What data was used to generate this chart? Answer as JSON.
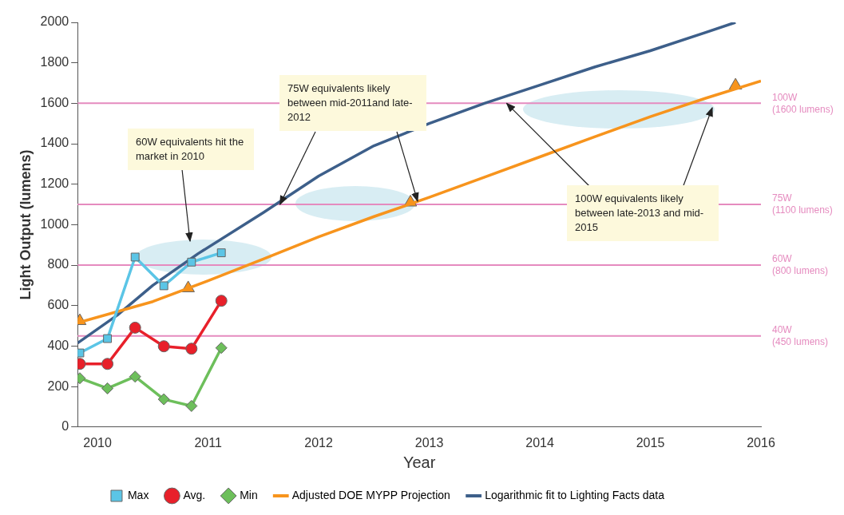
{
  "chart_data": {
    "type": "line",
    "xlabel": "Year",
    "ylabel": "Light Output (lumens)",
    "xlim": [
      2009.82,
      2016
    ],
    "xticks": [
      2010,
      2011,
      2012,
      2013,
      2014,
      2015,
      2016
    ],
    "ylim": [
      0,
      2000
    ],
    "yticks": [
      0,
      200,
      400,
      600,
      800,
      1000,
      1200,
      1400,
      1600,
      1800,
      2000
    ],
    "grid": false,
    "legend": "bottom",
    "line_style": "solid",
    "series": [
      {
        "name": "Max",
        "color": "#5bc5e6",
        "marker": "square",
        "x": [
          2009.84,
          2010.09,
          2010.34,
          2010.6,
          2010.85,
          2011.12
        ],
        "values": [
          366,
          437,
          840,
          698,
          815,
          861
        ]
      },
      {
        "name": "Avg.",
        "color": "#e8202a",
        "marker": "circle",
        "x": [
          2009.84,
          2010.09,
          2010.34,
          2010.6,
          2010.85,
          2011.12
        ],
        "values": [
          312,
          312,
          491,
          399,
          387,
          624
        ]
      },
      {
        "name": "Min",
        "color": "#6dbf5b",
        "marker": "diamond",
        "x": [
          2009.84,
          2010.09,
          2010.34,
          2010.6,
          2010.85,
          2011.12
        ],
        "values": [
          241,
          191,
          249,
          137,
          104,
          391
        ]
      },
      {
        "name": "Adjusted DOE MYPP Projection",
        "color": "#f7941d",
        "marker": "none",
        "x": [
          2009.82,
          2010.5,
          2011,
          2011.5,
          2012,
          2012.5,
          2013,
          2013.5,
          2014,
          2014.5,
          2015,
          2015.5,
          2016
        ],
        "values": [
          515,
          620,
          723,
          830,
          940,
          1040,
          1135,
          1235,
          1335,
          1435,
          1534,
          1625,
          1710
        ]
      },
      {
        "type": "scatter",
        "color": "#f7941d",
        "marker": "triangle",
        "x": [
          2009.84,
          2010.82,
          2012.83,
          2015.77
        ],
        "values": [
          524,
          686,
          1110,
          1688
        ]
      },
      {
        "name": "Logarithmic fit to Lighting Facts data",
        "color": "#3d5f8a",
        "marker": "none",
        "x": [
          2009.82,
          2010.18,
          2010.5,
          2010.91,
          2011.5,
          2012,
          2012.5,
          2013,
          2013.5,
          2014,
          2014.5,
          2015,
          2015.5,
          2015.77
        ],
        "values": [
          415,
          553,
          700,
          857,
          1060,
          1240,
          1390,
          1500,
          1600,
          1690,
          1780,
          1860,
          1950,
          2000
        ]
      }
    ],
    "ref_lines": [
      {
        "axis": "y",
        "value": 1600,
        "label": "100W (1600 lumens)",
        "color": "#e58bbf"
      },
      {
        "axis": "y",
        "value": 1100,
        "label": "75W (1100 lumens)",
        "color": "#e58bbf"
      },
      {
        "axis": "y",
        "value": 800,
        "label": "60W (800 lumens)",
        "color": "#e58bbf"
      },
      {
        "axis": "y",
        "value": 450,
        "label": "40W (450 lumens)",
        "color": "#e58bbf"
      }
    ],
    "annotations": [
      "60W equivalents hit the market in 2010",
      {
        "text": "75W equivalents likely between mid-2011and late-2012",
        "x": 2011.65,
        "y": 1100
      },
      {
        "text": "100W equivalents likely between late-2013 and mid-2015",
        "x": 2013.7,
        "y": 1600
      }
    ]
  }
}
